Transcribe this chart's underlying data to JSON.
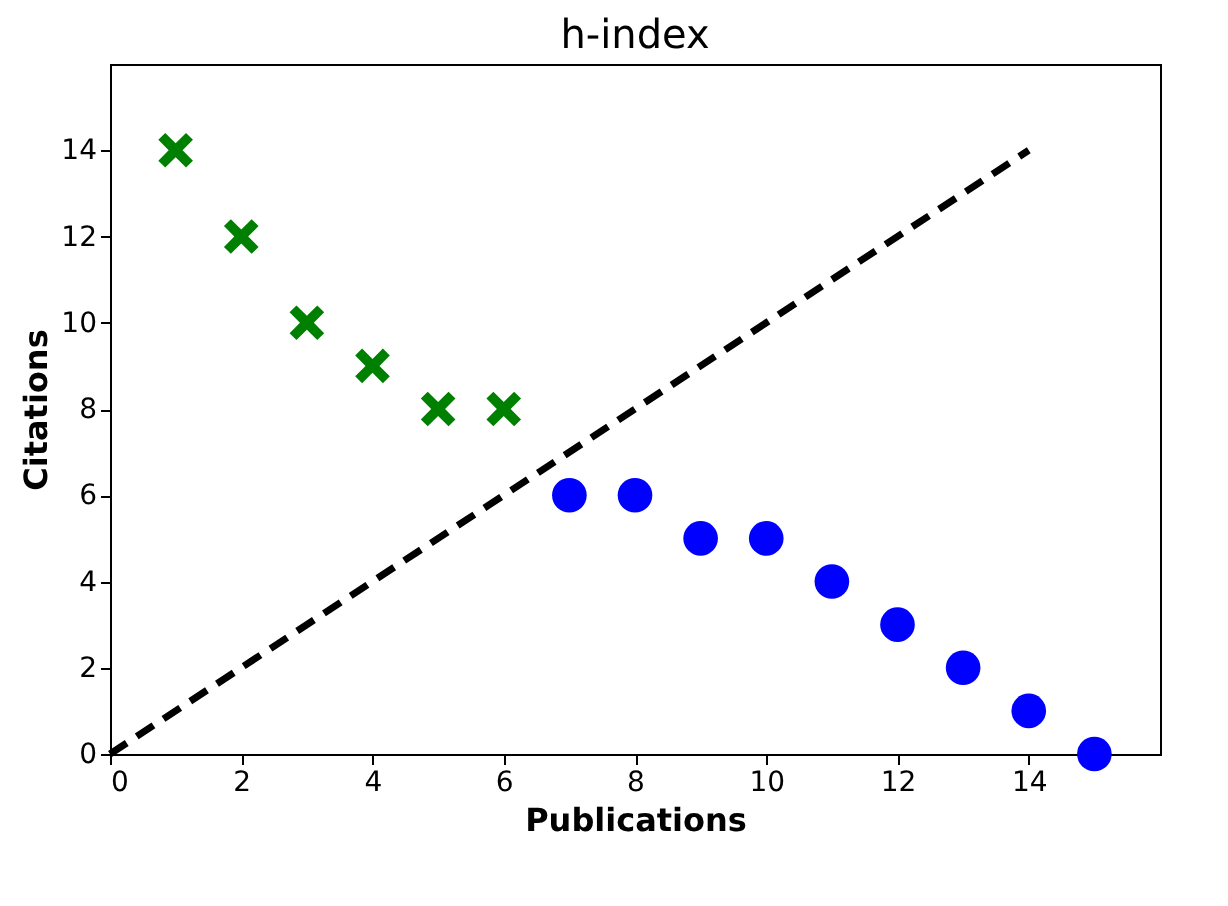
{
  "chart_data": {
    "type": "scatter",
    "title": "h-index",
    "xlabel": "Publications",
    "ylabel": "Citations",
    "xlim": [
      0,
      16
    ],
    "ylim": [
      0,
      16
    ],
    "xticks": [
      0,
      2,
      4,
      6,
      8,
      10,
      12,
      14
    ],
    "yticks": [
      0,
      2,
      4,
      6,
      8,
      10,
      12,
      14
    ],
    "grid": false,
    "series": [
      {
        "color": "#008000",
        "marker": "cross",
        "x": [
          1,
          2,
          3,
          4,
          5,
          6
        ],
        "values": [
          14,
          12,
          10,
          9,
          8,
          8
        ]
      },
      {
        "color": "#0000ff",
        "marker": "circle",
        "x": [
          7,
          8,
          9,
          10,
          11,
          12,
          13,
          14,
          15
        ],
        "values": [
          6,
          6,
          5,
          5,
          4,
          3,
          2,
          1,
          0
        ]
      },
      {
        "type": "line",
        "color": "#000000",
        "line_style": "dashed",
        "marker": "none",
        "x": [
          0,
          14
        ],
        "values": [
          0,
          14
        ]
      }
    ]
  }
}
